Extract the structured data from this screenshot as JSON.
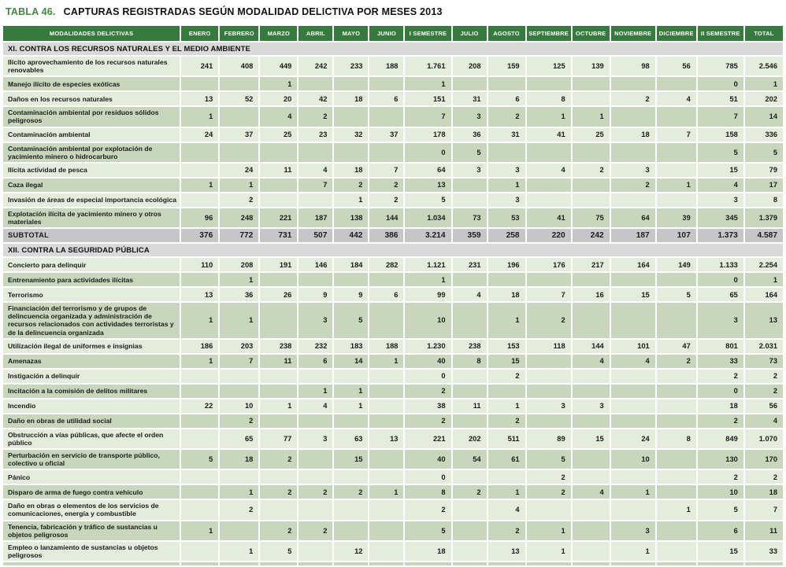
{
  "title": {
    "tag": "TABLA 46.",
    "text": "CAPTURAS REGISTRADAS SEGÚN MODALIDAD DELICTIVA POR MESES 2013"
  },
  "colors": {
    "header_green": "#377a3d",
    "title_green": "#3f8a3e",
    "section_gray": "#d9d9d9",
    "row_light": "#e4ecdc",
    "row_dark": "#c8d7bb",
    "subtotal_gray": "#c6c6c8"
  },
  "table": {
    "columns": [
      "MODALIDADES DELICTIVAS",
      "ENERO",
      "FEBRERO",
      "MARZO",
      "ABRIL",
      "MAYO",
      "JUNIO",
      "I SEMESTRE",
      "JULIO",
      "AGOSTO",
      "SEPTIEMBRE",
      "OCTUBRE",
      "NOVIEMBRE",
      "DICIEMBRE",
      "II SEMESTRE",
      "TOTAL"
    ],
    "sections": [
      {
        "header": "XI. CONTRA LOS RECURSOS NATURALES Y EL MEDIO AMBIENTE",
        "rows": [
          {
            "label": "Ilícito aprovechamiento de los recursos naturales renovables",
            "values": [
              "241",
              "408",
              "449",
              "242",
              "233",
              "188",
              "1.761",
              "208",
              "159",
              "125",
              "139",
              "98",
              "56",
              "785",
              "2.546"
            ]
          },
          {
            "label": "Manejo ilícito de especies exóticas",
            "values": [
              "",
              "",
              "1",
              "",
              "",
              "",
              "1",
              "",
              "",
              "",
              "",
              "",
              "",
              "0",
              "1"
            ]
          },
          {
            "label": "Daños en los recursos naturales",
            "values": [
              "13",
              "52",
              "20",
              "42",
              "18",
              "6",
              "151",
              "31",
              "6",
              "8",
              "",
              "2",
              "4",
              "51",
              "202"
            ]
          },
          {
            "label": "Contaminación ambiental por residuos sólidos peligrosos",
            "values": [
              "1",
              "",
              "4",
              "2",
              "",
              "",
              "7",
              "3",
              "2",
              "1",
              "1",
              "",
              "",
              "7",
              "14"
            ]
          },
          {
            "label": "Contaminación ambiental",
            "values": [
              "24",
              "37",
              "25",
              "23",
              "32",
              "37",
              "178",
              "36",
              "31",
              "41",
              "25",
              "18",
              "7",
              "158",
              "336"
            ]
          },
          {
            "label": "Contaminación ambiental por explotación de yacimiento minero o hidrocarburo",
            "values": [
              "",
              "",
              "",
              "",
              "",
              "",
              "0",
              "5",
              "",
              "",
              "",
              "",
              "",
              "5",
              "5"
            ]
          },
          {
            "label": "Ilícita actividad de pesca",
            "values": [
              "",
              "24",
              "11",
              "4",
              "18",
              "7",
              "64",
              "3",
              "3",
              "4",
              "2",
              "3",
              "",
              "15",
              "79"
            ]
          },
          {
            "label": "Caza ilegal",
            "values": [
              "1",
              "1",
              "",
              "7",
              "2",
              "2",
              "13",
              "",
              "1",
              "",
              "",
              "2",
              "1",
              "4",
              "17"
            ]
          },
          {
            "label": "Invasión de áreas de especial importancia ecológica",
            "values": [
              "",
              "2",
              "",
              "",
              "1",
              "2",
              "5",
              "",
              "3",
              "",
              "",
              "",
              "",
              "3",
              "8"
            ]
          },
          {
            "label": "Explotación ilícita de yacimiento minero y otros materiales",
            "values": [
              "96",
              "248",
              "221",
              "187",
              "138",
              "144",
              "1.034",
              "73",
              "53",
              "41",
              "75",
              "64",
              "39",
              "345",
              "1.379"
            ]
          }
        ],
        "subtotal": {
          "label": "SUBTOTAL",
          "values": [
            "376",
            "772",
            "731",
            "507",
            "442",
            "386",
            "3.214",
            "359",
            "258",
            "220",
            "242",
            "187",
            "107",
            "1.373",
            "4.587"
          ]
        }
      },
      {
        "header": "XII. CONTRA LA SEGURIDAD PÚBLICA",
        "rows": [
          {
            "label": "Concierto para delinquir",
            "values": [
              "110",
              "208",
              "191",
              "146",
              "184",
              "282",
              "1.121",
              "231",
              "196",
              "176",
              "217",
              "164",
              "149",
              "1.133",
              "2.254"
            ]
          },
          {
            "label": "Entrenamiento para actividades ilícitas",
            "values": [
              "",
              "1",
              "",
              "",
              "",
              "",
              "1",
              "",
              "",
              "",
              "",
              "",
              "",
              "0",
              "1"
            ]
          },
          {
            "label": "Terrorismo",
            "values": [
              "13",
              "36",
              "26",
              "9",
              "9",
              "6",
              "99",
              "4",
              "18",
              "7",
              "16",
              "15",
              "5",
              "65",
              "164"
            ]
          },
          {
            "label": "Financiación del terrorismo y de grupos de delincuencia organizada y administración de recursos relacionados con actividades terroristas y de la delincuencia organizada",
            "values": [
              "1",
              "1",
              "",
              "3",
              "5",
              "",
              "10",
              "",
              "1",
              "2",
              "",
              "",
              "",
              "3",
              "13"
            ]
          },
          {
            "label": "Utilización ilegal de uniformes e insignias",
            "values": [
              "186",
              "203",
              "238",
              "232",
              "183",
              "188",
              "1.230",
              "238",
              "153",
              "118",
              "144",
              "101",
              "47",
              "801",
              "2.031"
            ]
          },
          {
            "label": "Amenazas",
            "values": [
              "1",
              "7",
              "11",
              "6",
              "14",
              "1",
              "40",
              "8",
              "15",
              "",
              "4",
              "4",
              "2",
              "33",
              "73"
            ]
          },
          {
            "label": "Instigación a delinquir",
            "values": [
              "",
              "",
              "",
              "",
              "",
              "",
              "0",
              "",
              "2",
              "",
              "",
              "",
              "",
              "2",
              "2"
            ]
          },
          {
            "label": "Incitación a la comisión de delitos militares",
            "values": [
              "",
              "",
              "",
              "1",
              "1",
              "",
              "2",
              "",
              "",
              "",
              "",
              "",
              "",
              "0",
              "2"
            ]
          },
          {
            "label": "Incendio",
            "values": [
              "22",
              "10",
              "1",
              "4",
              "1",
              "",
              "38",
              "11",
              "1",
              "3",
              "3",
              "",
              "",
              "18",
              "56"
            ]
          },
          {
            "label": "Daño en obras de utilidad social",
            "values": [
              "",
              "2",
              "",
              "",
              "",
              "",
              "2",
              "",
              "2",
              "",
              "",
              "",
              "",
              "2",
              "4"
            ]
          },
          {
            "label": "Obstrucción a vías públicas, que afecte el orden público",
            "values": [
              "",
              "65",
              "77",
              "3",
              "63",
              "13",
              "221",
              "202",
              "511",
              "89",
              "15",
              "24",
              "8",
              "849",
              "1.070"
            ]
          },
          {
            "label": "Perturbación en servicio de transporte público, colectivo u oficial",
            "values": [
              "5",
              "18",
              "2",
              "",
              "15",
              "",
              "40",
              "54",
              "61",
              "5",
              "",
              "10",
              "",
              "130",
              "170"
            ]
          },
          {
            "label": "Pánico",
            "values": [
              "",
              "",
              "",
              "",
              "",
              "",
              "0",
              "",
              "",
              "2",
              "",
              "",
              "",
              "2",
              "2"
            ]
          },
          {
            "label": "Disparo de arma de fuego contra vehículo",
            "values": [
              "",
              "1",
              "2",
              "2",
              "2",
              "1",
              "8",
              "2",
              "1",
              "2",
              "4",
              "1",
              "",
              "10",
              "18"
            ]
          },
          {
            "label": "Daño en obras o elementos de los servicios de comunicaciones, energía y combustible",
            "values": [
              "",
              "2",
              "",
              "",
              "",
              "",
              "2",
              "",
              "4",
              "",
              "",
              "",
              "1",
              "5",
              "7"
            ]
          },
          {
            "label": "Tenencia, fabricación y tráfico de sustancias u objetos peligrosos",
            "values": [
              "1",
              "",
              "2",
              "2",
              "",
              "",
              "5",
              "",
              "2",
              "1",
              "",
              "3",
              "",
              "6",
              "11"
            ]
          },
          {
            "label": "Empleo o lanzamiento de sustancias u objetos peligrosos",
            "values": [
              "",
              "1",
              "5",
              "",
              "12",
              "",
              "18",
              "",
              "13",
              "1",
              "",
              "1",
              "",
              "15",
              "33"
            ]
          }
        ],
        "subtotal": null
      }
    ],
    "partial_bottom_row": true
  }
}
